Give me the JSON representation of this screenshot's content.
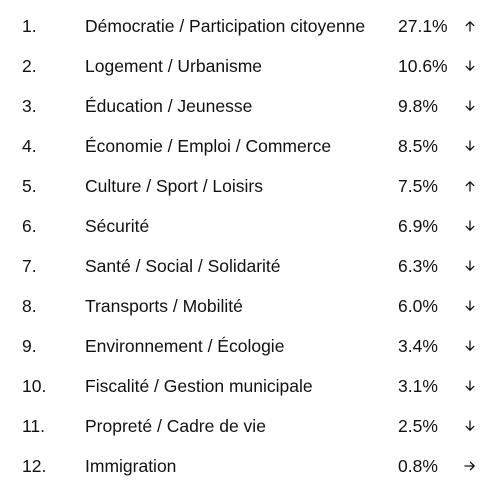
{
  "ranking": {
    "rows": [
      {
        "rank": "1.",
        "topic": "Démocratie / Participation citoyenne",
        "percent": "27.1%",
        "trend": "up-arrow-icon"
      },
      {
        "rank": "2.",
        "topic": "Logement / Urbanisme",
        "percent": "10.6%",
        "trend": "down-arrow-icon"
      },
      {
        "rank": "3.",
        "topic": "Éducation / Jeunesse",
        "percent": "9.8%",
        "trend": "down-arrow-icon"
      },
      {
        "rank": "4.",
        "topic": "Économie / Emploi / Commerce",
        "percent": "8.5%",
        "trend": "down-arrow-icon"
      },
      {
        "rank": "5.",
        "topic": "Culture / Sport / Loisirs",
        "percent": "7.5%",
        "trend": "up-arrow-icon"
      },
      {
        "rank": "6.",
        "topic": "Sécurité",
        "percent": "6.9%",
        "trend": "down-arrow-icon"
      },
      {
        "rank": "7.",
        "topic": "Santé / Social / Solidarité",
        "percent": "6.3%",
        "trend": "down-arrow-icon"
      },
      {
        "rank": "8.",
        "topic": "Transports / Mobilité",
        "percent": "6.0%",
        "trend": "down-arrow-icon"
      },
      {
        "rank": "9.",
        "topic": "Environnement / Écologie",
        "percent": "3.4%",
        "trend": "down-arrow-icon"
      },
      {
        "rank": "10.",
        "topic": "Fiscalité / Gestion municipale",
        "percent": "3.1%",
        "trend": "down-arrow-icon"
      },
      {
        "rank": "11.",
        "topic": "Propreté / Cadre de vie",
        "percent": "2.5%",
        "trend": "down-arrow-icon"
      },
      {
        "rank": "12.",
        "topic": "Immigration",
        "percent": "0.8%",
        "trend": "right-arrow-icon"
      }
    ]
  }
}
